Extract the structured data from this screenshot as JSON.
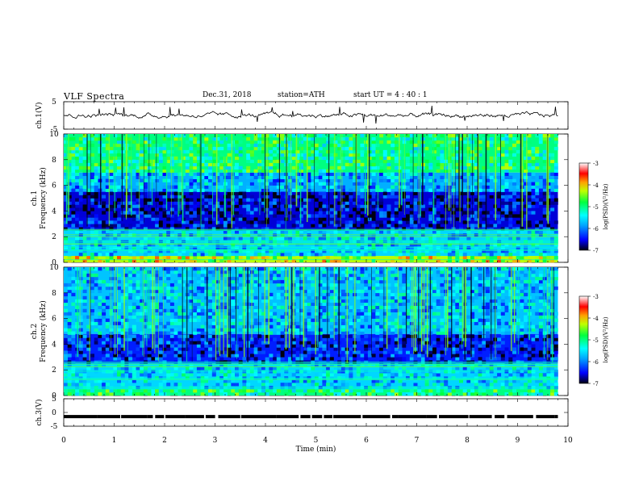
{
  "header": {
    "title": "VLF  Spectra",
    "date": "Dec.31, 2018",
    "station": "station=ATH",
    "start": "start  UT  =   4  : 40 : 1"
  },
  "chart_data": [
    {
      "type": "line",
      "panel": "ch1-waveform",
      "ylabel": "ch.1(V)",
      "ylim": [
        -5,
        5
      ],
      "yticks": [
        "5",
        "-5"
      ],
      "xlim": [
        0,
        10
      ],
      "data_extent_x": [
        0,
        9.8
      ],
      "series": [
        {
          "values_description_note": "",
          "mean": 0,
          "amplitude": 0.8
        }
      ]
    },
    {
      "type": "heatmap",
      "panel": "ch1-spectrogram",
      "ylabel": [
        "ch.1",
        "Frequency  (kHz)"
      ],
      "ylim": [
        0,
        10
      ],
      "yticks": [
        "0",
        "2",
        "4",
        "6",
        "8",
        "10"
      ],
      "xlim": [
        0,
        10
      ],
      "data_extent_x": [
        0,
        9.8
      ],
      "colorbar": {
        "label": "log(PSD)(V²/Hz)",
        "range": [
          -7,
          -3
        ],
        "ticks": [
          "-3",
          "-4",
          "-5",
          "-6",
          "-7"
        ]
      },
      "bands": [
        {
          "f": [
            0,
            0.5
          ],
          "level": -4.3
        },
        {
          "f": [
            0.5,
            2.5
          ],
          "level": -5.6
        },
        {
          "f": [
            2.5,
            5.5
          ],
          "level": -6.6
        },
        {
          "f": [
            5.5,
            7.0
          ],
          "level": -5.8
        },
        {
          "f": [
            7.0,
            10
          ],
          "level": -5.0
        }
      ]
    },
    {
      "type": "heatmap",
      "panel": "ch2-spectrogram",
      "ylabel": [
        "ch.2",
        "Frequency  (kHz)"
      ],
      "ylim": [
        0,
        10
      ],
      "yticks": [
        "0",
        "2",
        "4",
        "6",
        "8",
        "10"
      ],
      "xlim": [
        0,
        10
      ],
      "data_extent_x": [
        0,
        9.8
      ],
      "colorbar": {
        "label": "log(PSD)(V²/Hz)",
        "range": [
          -7,
          -3
        ],
        "ticks": [
          "-3",
          "-4",
          "-5",
          "-6",
          "-7"
        ]
      },
      "bands": [
        {
          "f": [
            0,
            0.5
          ],
          "level": -5.0
        },
        {
          "f": [
            0.5,
            2.5
          ],
          "level": -5.6
        },
        {
          "f": [
            2.5,
            4.8
          ],
          "level": -6.4
        },
        {
          "f": [
            4.8,
            10
          ],
          "level": -5.7
        }
      ]
    },
    {
      "type": "line",
      "panel": "ch3-waveform",
      "ylabel": "ch.3(V)",
      "ylim": [
        -5,
        5
      ],
      "yticks": [
        "5",
        "0",
        "-5"
      ],
      "xlim": [
        0,
        10
      ],
      "data_extent_x": [
        0,
        9.8
      ],
      "series": [
        {
          "mean": -1.5
        }
      ]
    }
  ],
  "xaxis": {
    "label": "Time  (min)",
    "ticks": [
      "0",
      "1",
      "2",
      "3",
      "4",
      "5",
      "6",
      "7",
      "8",
      "9",
      "10"
    ]
  }
}
